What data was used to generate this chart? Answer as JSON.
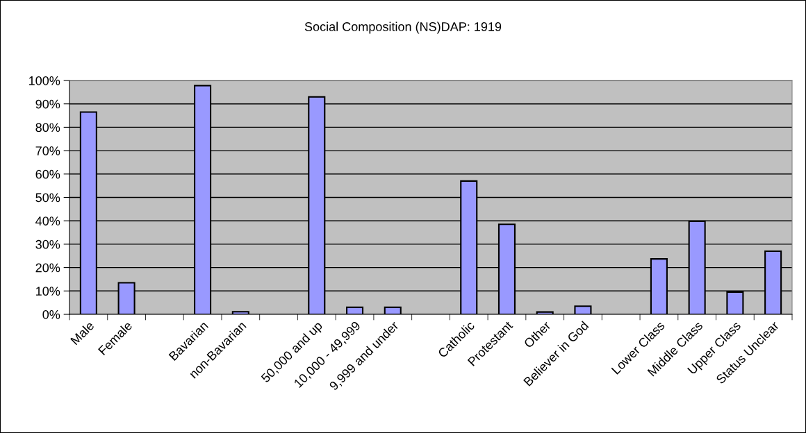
{
  "chart_data": {
    "type": "bar",
    "title": "Social Composition (NS)DAP: 1919",
    "categories": [
      "Male",
      "Female",
      null,
      "Bavarian",
      "non-Bavarian",
      null,
      "50,000 and up",
      "10,000 - 49,999",
      "9,999 and under",
      null,
      "Catholic",
      "Protestant",
      "Other",
      "Believer in God",
      null,
      "Lower Class",
      "Middle Class",
      "Upper Class",
      "Status Unclear"
    ],
    "values": [
      86.5,
      13.5,
      null,
      97.8,
      1.1,
      null,
      93,
      3,
      3,
      null,
      57,
      38.5,
      1,
      3.5,
      null,
      23.7,
      39.8,
      9.5,
      27
    ],
    "color": "#9999ff",
    "ylim": [
      0,
      100
    ],
    "yticks": [
      {
        "value": 0,
        "label": "0%"
      },
      {
        "value": 10,
        "label": "10%"
      },
      {
        "value": 20,
        "label": "20%"
      },
      {
        "value": 30,
        "label": "30%"
      },
      {
        "value": 40,
        "label": "40%"
      },
      {
        "value": 50,
        "label": "50%"
      },
      {
        "value": 60,
        "label": "60%"
      },
      {
        "value": 70,
        "label": "70%"
      },
      {
        "value": 80,
        "label": "80%"
      },
      {
        "value": 90,
        "label": "90%"
      },
      {
        "value": 100,
        "label": "100%"
      }
    ],
    "grid": "y"
  }
}
